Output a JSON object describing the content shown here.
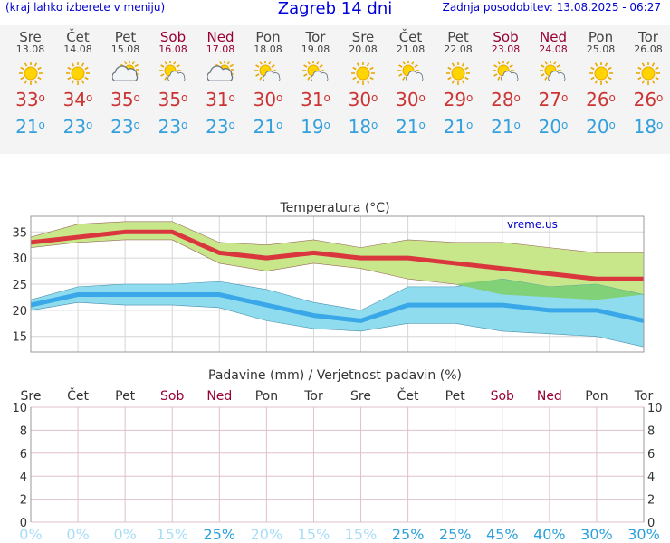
{
  "header": {
    "left_note": "(kraj lahko izberete v meniju)",
    "title": "Zagreb 14 dni",
    "updated": "Zadnja posodobitev: 13.08.2025 - 06:27"
  },
  "days": [
    {
      "name": "Sre",
      "date": "13.08",
      "weekend": false,
      "icon": "sun-icon",
      "max": "33",
      "min": "21"
    },
    {
      "name": "Čet",
      "date": "14.08",
      "weekend": false,
      "icon": "sun-icon",
      "max": "34",
      "min": "23"
    },
    {
      "name": "Pet",
      "date": "15.08",
      "weekend": false,
      "icon": "cloud-sun-icon",
      "max": "35",
      "min": "23"
    },
    {
      "name": "Sob",
      "date": "16.08",
      "weekend": true,
      "icon": "sun-cloud-icon",
      "max": "35",
      "min": "23"
    },
    {
      "name": "Ned",
      "date": "17.08",
      "weekend": true,
      "icon": "cloud-sun-icon",
      "max": "31",
      "min": "23"
    },
    {
      "name": "Pon",
      "date": "18.08",
      "weekend": false,
      "icon": "sun-cloud-icon",
      "max": "30",
      "min": "21"
    },
    {
      "name": "Tor",
      "date": "19.08",
      "weekend": false,
      "icon": "sun-cloud-icon",
      "max": "31",
      "min": "19"
    },
    {
      "name": "Sre",
      "date": "20.08",
      "weekend": false,
      "icon": "sun-icon",
      "max": "30",
      "min": "18"
    },
    {
      "name": "Čet",
      "date": "21.08",
      "weekend": false,
      "icon": "sun-cloud-icon",
      "max": "30",
      "min": "21"
    },
    {
      "name": "Pet",
      "date": "22.08",
      "weekend": false,
      "icon": "sun-icon",
      "max": "29",
      "min": "21"
    },
    {
      "name": "Sob",
      "date": "23.08",
      "weekend": true,
      "icon": "sun-cloud-icon",
      "max": "28",
      "min": "21"
    },
    {
      "name": "Ned",
      "date": "24.08",
      "weekend": true,
      "icon": "sun-cloud-icon",
      "max": "27",
      "min": "20"
    },
    {
      "name": "Pon",
      "date": "25.08",
      "weekend": false,
      "icon": "sun-icon",
      "max": "26",
      "min": "20"
    },
    {
      "name": "Tor",
      "date": "26.08",
      "weekend": false,
      "icon": "sun-icon",
      "max": "26",
      "min": "18"
    }
  ],
  "degree_symbol": "o",
  "chart_data": [
    {
      "type": "line",
      "title": "Temperatura (°C)",
      "watermark": "vreme.us",
      "categories": [
        "13.08",
        "14.08",
        "15.08",
        "16.08",
        "17.08",
        "18.08",
        "19.08",
        "20.08",
        "21.08",
        "22.08",
        "23.08",
        "24.08",
        "25.08",
        "26.08"
      ],
      "ylim": [
        12,
        38
      ],
      "yticks": [
        15,
        20,
        25,
        30,
        35
      ],
      "grid": true,
      "series": [
        {
          "values": [
            33,
            34,
            35,
            35,
            31,
            30,
            31,
            30,
            30,
            29,
            28,
            27,
            26,
            26
          ],
          "color": "#d9363e"
        },
        {
          "values": [
            21,
            23,
            23,
            23,
            23,
            21,
            19,
            18,
            21,
            21,
            21,
            20,
            20,
            18
          ],
          "color": "#3aa8e8"
        }
      ],
      "max_band_upper": [
        34,
        36.5,
        37,
        37,
        33,
        32.5,
        33.5,
        32,
        33.5,
        33,
        33,
        32,
        31,
        31
      ],
      "max_band_lower": [
        32,
        33,
        33.5,
        33.5,
        29,
        27.5,
        29,
        28,
        26,
        25,
        23,
        22.5,
        22,
        23
      ],
      "min_band_upper": [
        22,
        24.5,
        25,
        25,
        25.5,
        24,
        21.5,
        20,
        24.5,
        24.5,
        26,
        24.5,
        25,
        23
      ],
      "min_band_lower": [
        20,
        21.5,
        21,
        21,
        20.5,
        18,
        16.5,
        16,
        17.5,
        17.5,
        16,
        15.5,
        15,
        13
      ]
    },
    {
      "type": "bar",
      "title": "Padavine (mm) / Verjetnost padavin (%)",
      "categories": [
        "Sre",
        "Čet",
        "Pet",
        "Sob",
        "Ned",
        "Pon",
        "Tor",
        "Sre",
        "Čet",
        "Pet",
        "Sob",
        "Ned",
        "Pon",
        "Tor"
      ],
      "precip_mm": [
        0,
        0,
        0,
        0,
        0,
        0,
        0,
        0,
        0,
        0,
        0,
        0,
        0,
        0
      ],
      "probability_pct": [
        "0%",
        "0%",
        "0%",
        "15%",
        "25%",
        "20%",
        "15%",
        "15%",
        "25%",
        "25%",
        "45%",
        "40%",
        "30%",
        "30%"
      ],
      "ylim": [
        0,
        10
      ],
      "yticks": [
        "0",
        "2",
        "4",
        "6",
        "8",
        "10"
      ],
      "grid": true
    }
  ],
  "colors": {
    "max_line": "#d9363e",
    "min_line": "#3aa8e8",
    "max_band": "#c8e68a",
    "min_band": "#8fdcee",
    "overlap_band": "#7fcf6a",
    "weekend": "#990033",
    "prob_low": "#a8ddf5",
    "prob_high": "#2aa0dc"
  }
}
